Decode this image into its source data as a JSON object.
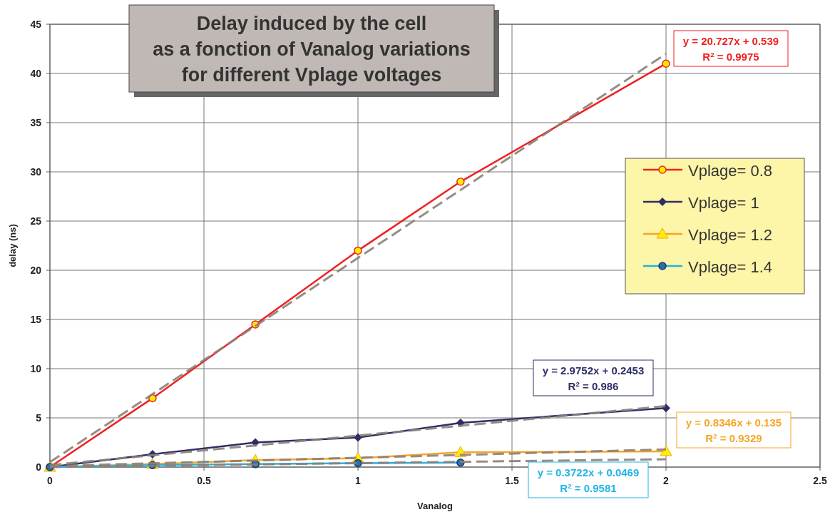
{
  "chart_data": {
    "type": "line",
    "title": "Delay induced by the cell\nas a fonction of Vanalog variations\nfor different Vplage voltages",
    "xlabel": "Vanalog",
    "ylabel": "delay (ns)",
    "xlim": [
      0,
      2.5
    ],
    "xticks": [
      0,
      0.5,
      1,
      1.5,
      2,
      2.5
    ],
    "ylim": [
      0,
      45
    ],
    "yticks": [
      0,
      5,
      10,
      15,
      20,
      25,
      30,
      35,
      40,
      45
    ],
    "grid": true,
    "legend": "right",
    "line_style": "solid",
    "series": [
      {
        "name": "Vplage= 0.8",
        "color": "#ee2222",
        "marker": "circle",
        "x": [
          0,
          0.333,
          0.667,
          1,
          1.333,
          2
        ],
        "values": [
          0,
          7,
          14.5,
          22,
          29,
          41
        ]
      },
      {
        "name": "Vplage= 1",
        "color": "#2e2e66",
        "marker": "diamond",
        "x": [
          0,
          0.333,
          0.667,
          1,
          1.333,
          2
        ],
        "values": [
          0,
          1.3,
          2.5,
          3,
          4.5,
          6
        ]
      },
      {
        "name": "Vplage= 1.2",
        "color": "#f5a623",
        "marker": "triangle",
        "x": [
          0,
          0.333,
          0.667,
          1,
          1.333,
          2
        ],
        "values": [
          0,
          0.3,
          0.7,
          0.9,
          1.5,
          1.6
        ]
      },
      {
        "name": "Vplage= 1.4",
        "color": "#1fb5e6",
        "marker": "circle",
        "x": [
          0,
          0.333,
          0.667,
          1,
          1.333
        ],
        "values": [
          0,
          0.2,
          0.3,
          0.4,
          0.45
        ]
      },
      {
        "type": "line",
        "color": "#8c8078",
        "marker": "none",
        "line_style": "dashed",
        "x": [
          0,
          2
        ],
        "values": [
          0.5,
          42
        ]
      },
      {
        "type": "line",
        "color": "#8c8078",
        "marker": "none",
        "line_style": "dashed",
        "x": [
          0,
          2
        ],
        "values": [
          0.2,
          6.2
        ]
      },
      {
        "type": "line",
        "color": "#8c8078",
        "marker": "none",
        "line_style": "dashed",
        "x": [
          0,
          2
        ],
        "values": [
          0.1,
          1.8
        ]
      },
      {
        "type": "line",
        "color": "#8c8078",
        "marker": "none",
        "line_style": "dashed",
        "x": [
          0,
          2
        ],
        "values": [
          0,
          0.8
        ]
      }
    ],
    "annotations": [
      "y = 20.727x + 0.539\nR$^{2}$ = 0.9975",
      "y = 2.9752x + 0.2453\nR$^{2}$ = 0.986",
      "y = 0.8346x + 0.135\nR$^{2}$ = 0.9329",
      "y = 0.3722x + 0.0469\nR$^{2}$ = 0.9581"
    ]
  }
}
